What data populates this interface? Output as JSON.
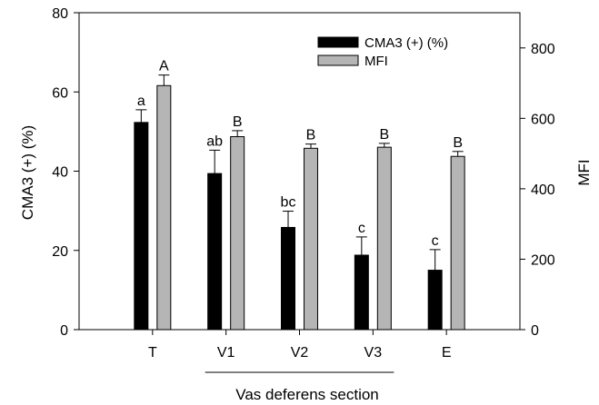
{
  "chart_data": {
    "type": "bar",
    "categories": [
      "T",
      "V1",
      "V2",
      "V3",
      "E"
    ],
    "xlabel": "Vas deferens section",
    "ylabel_left": "CMA3 (+) (%)",
    "ylabel_right": "MFI",
    "ylim_left": [
      0,
      80
    ],
    "ylim_right": [
      0,
      900
    ],
    "yticks_left": [
      0,
      20,
      40,
      60,
      80
    ],
    "yticks_right": [
      0,
      200,
      400,
      600,
      800
    ],
    "yticklabels_left": [
      "0",
      "20",
      "40",
      "60",
      "80"
    ],
    "yticklabels_right": [
      "0",
      "200",
      "400",
      "600",
      "800"
    ],
    "legend_position": "top-right",
    "series": [
      {
        "name": "CMA3 (+) (%)",
        "axis": "left",
        "color": "#000000",
        "values": [
          52.3,
          39.4,
          25.8,
          18.8,
          15.0
        ],
        "errors": [
          3.2,
          5.9,
          4.1,
          4.6,
          5.2
        ],
        "sig_labels": [
          "a",
          "ab",
          "bc",
          "c",
          "c"
        ]
      },
      {
        "name": "MFI",
        "axis": "right",
        "color": "#b5b5b5",
        "values": [
          693,
          548,
          515,
          518,
          492
        ],
        "errors": [
          30,
          17,
          12,
          11,
          14
        ],
        "sig_labels": [
          "A",
          "B",
          "B",
          "B",
          "B"
        ]
      }
    ]
  }
}
